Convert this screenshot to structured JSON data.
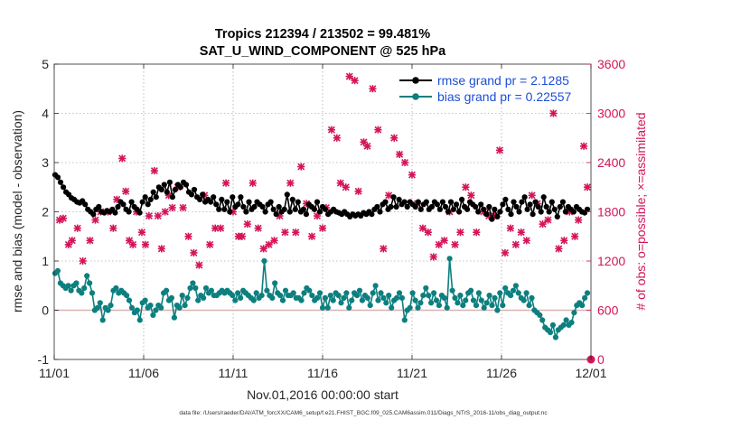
{
  "chart_data": {
    "type": "line",
    "title_line1": "Tropics 212394 / 213502 = 99.481%",
    "title_line2": "SAT_U_WIND_COMPONENT @ 525 hPa",
    "xlabel": "Nov.01,2016 00:00:00 start",
    "ylabel_left": "rmse and bias (model - observation)",
    "ylabel_right": "# of obs: o=possible; ×=assimilated",
    "footer": "data file: /Users/raeder/DAI/ATM_forcXX/CAM6_setup/f.e21.FHIST_BGC.f09_025.CAM6assim.011/Diags_NTrS_2016-11/obs_diag_output.nc",
    "xlim": [
      0,
      30
    ],
    "ylim_left": [
      -1,
      5
    ],
    "ylim_right": [
      0,
      3600
    ],
    "x_ticks": [
      0,
      5,
      10,
      15,
      20,
      25,
      30
    ],
    "x_tick_labels": [
      "11/01",
      "11/06",
      "11/11",
      "11/16",
      "11/21",
      "11/26",
      "12/01"
    ],
    "y_left_ticks": [
      -1,
      0,
      1,
      2,
      3,
      4,
      5
    ],
    "y_left_tick_labels": [
      "-1",
      "0",
      "1",
      "2",
      "3",
      "4",
      "5"
    ],
    "y_right_ticks": [
      0,
      600,
      1200,
      1800,
      2400,
      3000,
      3600
    ],
    "y_right_tick_labels": [
      "0",
      "600",
      "1200",
      "1800",
      "2400",
      "3000",
      "3600"
    ],
    "legend": [
      {
        "name": "rmse grand pr = 2.1285",
        "color": "#000000"
      },
      {
        "name": "bias grand pr = 0.22557",
        "color": "#0d7f7f"
      }
    ],
    "series": [
      {
        "name": "rmse",
        "color": "#000000",
        "values": [
          2.75,
          2.7,
          2.6,
          2.5,
          2.4,
          2.35,
          2.28,
          2.25,
          2.2,
          2.18,
          2.22,
          2.15,
          2.05,
          2.0,
          1.95,
          2.05,
          2.1,
          2.0,
          1.98,
          2.02,
          2.0,
          2.05,
          1.98,
          2.1,
          2.2,
          2.15,
          2.05,
          2.0,
          2.2,
          2.1,
          2.05,
          1.98,
          2.2,
          2.3,
          2.15,
          2.25,
          2.4,
          2.3,
          2.5,
          2.45,
          2.55,
          2.4,
          2.6,
          2.3,
          2.45,
          2.55,
          2.5,
          2.6,
          2.55,
          2.4,
          2.35,
          2.45,
          2.3,
          2.25,
          2.35,
          2.2,
          2.25,
          2.2,
          2.3,
          2.15,
          2.05,
          2.25,
          2.05,
          2.2,
          2.0,
          2.3,
          2.1,
          2.15,
          2.3,
          2.1,
          2.0,
          2.2,
          2.05,
          2.1,
          2.2,
          2.15,
          2.1,
          2.0,
          2.15,
          2.2,
          2.05,
          1.95,
          2.1,
          2.0,
          2.05,
          2.35,
          2.0,
          2.25,
          2.05,
          2.2,
          2.0,
          2.05,
          1.95,
          2.15,
          2.1,
          2.05,
          2.2,
          2.0,
          2.1,
          2.05,
          1.95,
          2.0,
          2.05,
          2.0,
          1.98,
          1.95,
          2.0,
          1.95,
          1.9,
          1.95,
          1.92,
          1.95,
          1.92,
          1.98,
          1.95,
          2.0,
          1.95,
          2.05,
          2.1,
          2.0,
          2.15,
          2.2,
          2.05,
          2.1,
          2.3,
          2.1,
          2.25,
          2.15,
          2.2,
          2.1,
          2.2,
          2.15,
          2.1,
          2.2,
          2.05,
          2.15,
          2.2,
          2.05,
          2.1,
          2.2,
          2.15,
          2.05,
          2.2,
          2.1,
          2.0,
          2.2,
          2.05,
          2.15,
          2.0,
          2.25,
          2.1,
          2.05,
          2.2,
          2.15,
          2.1,
          2.0,
          2.15,
          2.05,
          1.95,
          2.1,
          1.85,
          2.05,
          1.9,
          2.0,
          2.15,
          2.25,
          2.05,
          1.95,
          2.2,
          2.1,
          2.0,
          2.2,
          2.3,
          2.05,
          2.15,
          1.95,
          2.2,
          2.1,
          2.0,
          2.3,
          2.1,
          2.0,
          2.2,
          2.05,
          1.9,
          2.1,
          2.2,
          2.0,
          2.1,
          2.05,
          2.0,
          2.1,
          2.05,
          2.0,
          1.98,
          2.05
        ]
      },
      {
        "name": "bias",
        "color": "#0d7f7f",
        "values": [
          0.75,
          0.8,
          0.55,
          0.5,
          0.45,
          0.5,
          0.4,
          0.5,
          0.55,
          0.4,
          0.35,
          0.45,
          0.7,
          0.55,
          0.35,
          0.0,
          0.05,
          0.15,
          -0.2,
          0.05,
          0.0,
          0.1,
          0.4,
          0.45,
          0.35,
          0.4,
          0.35,
          0.3,
          0.2,
          0.05,
          -0.05,
          0.0,
          -0.2,
          0.15,
          0.2,
          0.05,
          0.1,
          -0.1,
          0.0,
          0.1,
          0.05,
          0.35,
          0.4,
          0.2,
          0.25,
          -0.15,
          0.1,
          0.05,
          0.3,
          0.1,
          0.25,
          0.45,
          0.55,
          0.45,
          0.2,
          0.3,
          0.25,
          0.45,
          0.35,
          0.4,
          0.3,
          0.3,
          0.35,
          0.4,
          0.35,
          0.4,
          0.35,
          0.3,
          0.2,
          0.35,
          0.25,
          0.4,
          0.35,
          0.3,
          0.25,
          0.2,
          0.35,
          0.25,
          0.3,
          1.0,
          0.4,
          0.3,
          0.25,
          0.55,
          0.35,
          0.3,
          0.2,
          0.4,
          0.3,
          0.3,
          0.35,
          0.25,
          0.25,
          0.2,
          0.35,
          0.45,
          0.4,
          0.3,
          0.2,
          0.25,
          0.35,
          0.05,
          0.25,
          0.05,
          0.3,
          0.2,
          0.35,
          0.3,
          0.15,
          0.25,
          0.35,
          0.05,
          0.2,
          0.35,
          0.3,
          0.4,
          0.2,
          0.3,
          0.25,
          0.1,
          0.35,
          0.5,
          0.2,
          0.35,
          0.25,
          0.15,
          0.3,
          0.05,
          0.2,
          0.25,
          0.35,
          0.25,
          -0.2,
          0.0,
          0.05,
          0.35,
          0.2,
          0.05,
          0.15,
          0.3,
          0.45,
          0.3,
          0.15,
          0.35,
          0.2,
          0.1,
          0.3,
          0.25,
          0.05,
          1.05,
          0.4,
          0.25,
          0.15,
          0.3,
          0.1,
          0.2,
          0.35,
          0.4,
          0.2,
          0.1,
          0.35,
          0.2,
          0.05,
          0.15,
          0.3,
          0.1,
          0.25,
          0.0,
          0.35,
          0.1,
          0.45,
          0.35,
          0.3,
          0.4,
          0.5,
          0.35,
          0.25,
          0.2,
          0.35,
          0.1,
          0.25,
          0.0,
          -0.05,
          -0.1,
          -0.2,
          -0.35,
          -0.4,
          -0.45,
          -0.3,
          -0.55,
          -0.4,
          -0.35,
          -0.3,
          -0.2,
          -0.3,
          -0.25,
          -0.05,
          0.1,
          0.15,
          0.1,
          0.25,
          0.35
        ]
      }
    ],
    "obs_count_assimilated": {
      "color": "#d4145a",
      "x": [
        0.3,
        0.5,
        0.8,
        1.0,
        1.3,
        1.6,
        2.0,
        2.3,
        2.6,
        3.0,
        3.3,
        3.5,
        3.8,
        4.0,
        4.2,
        4.4,
        4.6,
        4.9,
        5.1,
        5.3,
        5.6,
        5.8,
        6.0,
        6.2,
        6.4,
        6.6,
        6.9,
        7.2,
        7.5,
        7.8,
        8.1,
        8.4,
        8.7,
        9.0,
        9.3,
        9.6,
        10.0,
        10.3,
        10.5,
        10.8,
        11.1,
        11.4,
        11.7,
        12.0,
        12.3,
        12.6,
        12.9,
        13.2,
        13.5,
        13.8,
        14.1,
        14.4,
        14.7,
        15.0,
        15.2,
        15.5,
        15.8,
        16.0,
        16.3,
        16.5,
        16.8,
        17.0,
        17.3,
        17.5,
        17.8,
        18.1,
        18.4,
        18.7,
        19.0,
        19.3,
        19.6,
        20.0,
        20.3,
        20.6,
        20.9,
        21.2,
        21.5,
        21.8,
        22.1,
        22.4,
        22.7,
        23.0,
        23.3,
        23.6,
        24.0,
        24.3,
        24.6,
        24.9,
        25.2,
        25.5,
        25.8,
        26.1,
        26.4,
        26.7,
        27.0,
        27.3,
        27.6,
        27.9,
        28.2,
        28.5,
        28.8,
        29.1,
        29.3,
        29.6,
        29.8
      ],
      "values": [
        1700,
        1720,
        1400,
        1450,
        1600,
        1200,
        1450,
        1700,
        1800,
        1800,
        1600,
        1950,
        2450,
        2050,
        1450,
        1400,
        1800,
        1550,
        1400,
        1750,
        2300,
        1750,
        1350,
        1800,
        2000,
        1850,
        2100,
        1850,
        1500,
        1300,
        1150,
        2000,
        1400,
        1600,
        1600,
        2150,
        1800,
        1500,
        1500,
        1650,
        2150,
        1600,
        1350,
        1400,
        1450,
        1750,
        1550,
        2150,
        1550,
        2350,
        1900,
        1500,
        1750,
        1600,
        1850,
        2800,
        2700,
        2150,
        2100,
        3450,
        3400,
        2050,
        2650,
        2600,
        3300,
        2800,
        1350,
        2000,
        2700,
        2500,
        2400,
        2250,
        1900,
        1600,
        1550,
        1250,
        1400,
        1450,
        1800,
        1400,
        1550,
        2100,
        2000,
        1550,
        1800,
        1750,
        1750,
        2550,
        1300,
        1600,
        1400,
        1550,
        1450,
        2000,
        1900,
        1650,
        1700,
        3000,
        1350,
        1450,
        1800,
        1500,
        1700,
        2600,
        2100
      ]
    }
  }
}
